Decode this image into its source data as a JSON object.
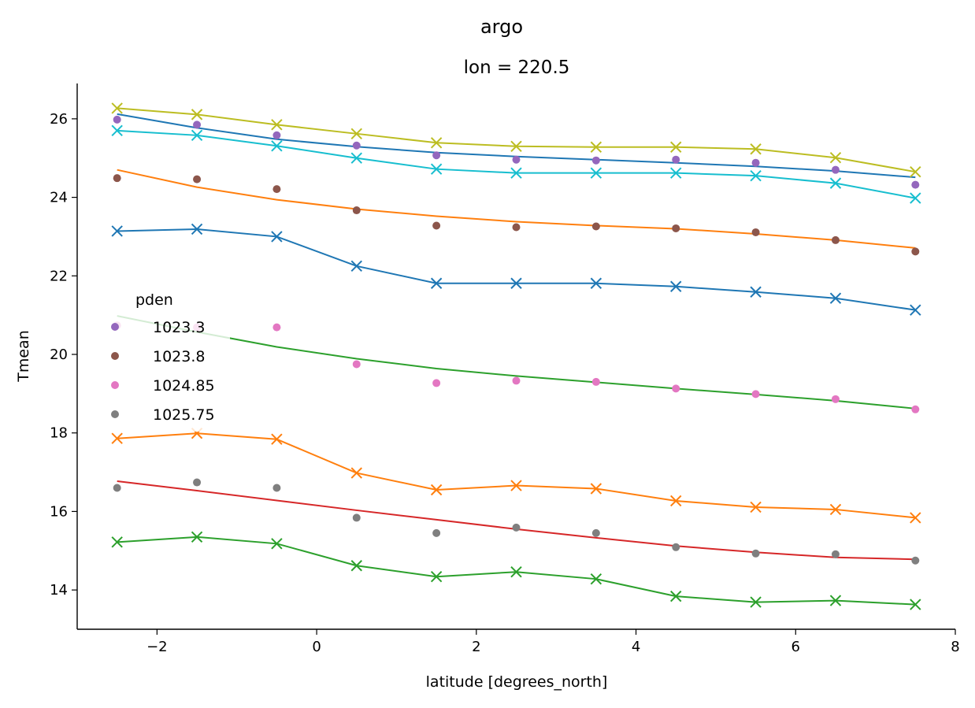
{
  "chart_data": {
    "type": "line",
    "suptitle": "argo",
    "title": "lon = 220.5",
    "xlabel": "latitude [degrees_north]",
    "ylabel": "Tmean",
    "xlim": [
      -3,
      8
    ],
    "ylim": [
      13.0,
      26.9
    ],
    "xticks": [
      -2,
      0,
      2,
      4,
      6,
      8
    ],
    "xtick_labels": [
      "−2",
      "0",
      "2",
      "4",
      "6",
      "8"
    ],
    "yticks": [
      14,
      16,
      18,
      20,
      22,
      24,
      26
    ],
    "ytick_labels": [
      "14",
      "16",
      "18",
      "20",
      "22",
      "24",
      "26"
    ],
    "grid": false,
    "x": [
      -2.5,
      -1.5,
      -0.5,
      0.5,
      1.5,
      2.5,
      3.5,
      4.5,
      5.5,
      6.5,
      7.5
    ],
    "legend": {
      "title": "pden",
      "placement": "center-left",
      "entries": [
        {
          "label": "1023.3",
          "color": "#9467bd"
        },
        {
          "label": "1023.8",
          "color": "#8c564b"
        },
        {
          "label": "1024.85",
          "color": "#e377c2"
        },
        {
          "label": "1025.75",
          "color": "#7f7f7f"
        }
      ]
    },
    "dot_series": [
      {
        "name": "1023.3",
        "color": "#9467bd",
        "values": [
          25.98,
          25.85,
          25.58,
          25.32,
          25.07,
          24.96,
          24.94,
          24.96,
          24.88,
          24.7,
          24.32
        ]
      },
      {
        "name": "1023.8",
        "color": "#8c564b",
        "values": [
          24.49,
          24.46,
          24.21,
          23.67,
          23.28,
          23.24,
          23.26,
          23.21,
          23.11,
          22.91,
          22.62
        ]
      },
      {
        "name": "1024.85",
        "color": "#e377c2",
        "values": [
          20.74,
          20.69,
          20.69,
          19.75,
          19.27,
          19.33,
          19.3,
          19.13,
          18.99,
          18.86,
          18.6
        ]
      },
      {
        "name": "1025.75",
        "color": "#7f7f7f",
        "values": [
          16.6,
          16.74,
          16.6,
          15.84,
          15.45,
          15.59,
          15.45,
          15.09,
          14.93,
          14.91,
          14.75
        ]
      }
    ],
    "fit_lines": [
      {
        "color": "#1f77b4",
        "values": [
          26.12,
          25.77,
          25.48,
          25.29,
          25.14,
          25.04,
          24.96,
          24.88,
          24.79,
          24.67,
          24.51
        ]
      },
      {
        "color": "#ff7f0e",
        "values": [
          24.7,
          24.26,
          23.94,
          23.7,
          23.52,
          23.38,
          23.28,
          23.2,
          23.07,
          22.91,
          22.71
        ]
      },
      {
        "color": "#2ca02c",
        "values": [
          20.98,
          20.57,
          20.19,
          19.89,
          19.64,
          19.45,
          19.29,
          19.13,
          18.98,
          18.82,
          18.62
        ]
      },
      {
        "color": "#d62728",
        "values": [
          16.77,
          16.53,
          16.28,
          16.03,
          15.79,
          15.55,
          15.33,
          15.12,
          14.96,
          14.83,
          14.78
        ]
      }
    ],
    "x_series": [
      {
        "color": "#bcbd22",
        "values": [
          26.27,
          26.11,
          25.85,
          25.62,
          25.39,
          25.3,
          25.28,
          25.28,
          25.23,
          25.01,
          24.65
        ]
      },
      {
        "color": "#17becf",
        "values": [
          25.7,
          25.58,
          25.31,
          25.0,
          24.72,
          24.62,
          24.62,
          24.62,
          24.55,
          24.36,
          23.98
        ]
      },
      {
        "color": "#1f77b4",
        "values": [
          23.14,
          23.19,
          23.0,
          22.25,
          21.81,
          21.81,
          21.81,
          21.73,
          21.59,
          21.43,
          21.13
        ]
      },
      {
        "color": "#ff7f0e",
        "values": [
          17.86,
          17.99,
          17.84,
          16.98,
          16.55,
          16.66,
          16.58,
          16.27,
          16.11,
          16.05,
          15.84
        ]
      },
      {
        "color": "#2ca02c",
        "values": [
          15.22,
          15.35,
          15.18,
          14.62,
          14.34,
          14.46,
          14.28,
          13.84,
          13.69,
          13.73,
          13.63
        ]
      }
    ]
  }
}
